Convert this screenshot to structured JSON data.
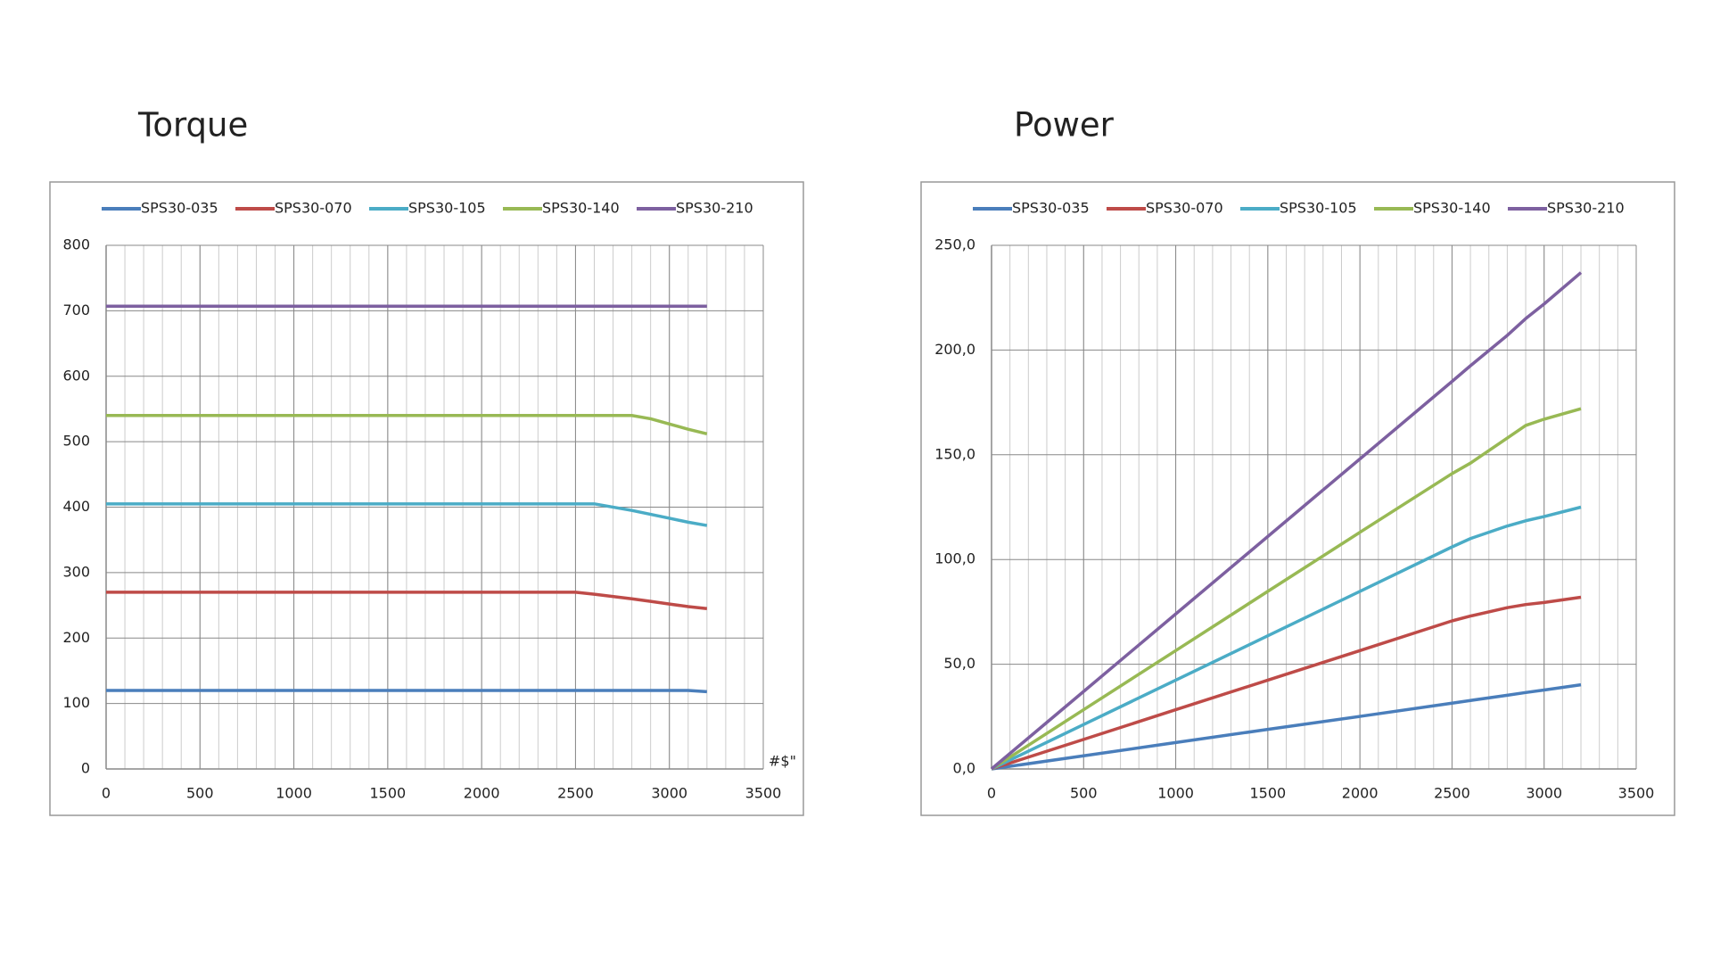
{
  "chart_data": [
    {
      "type": "line",
      "title": "Torque",
      "x_label": "#$\"",
      "x": [
        0,
        2500,
        2600,
        2800,
        2900,
        3000,
        3100,
        3200
      ],
      "series": [
        {
          "name": "SPS30-035",
          "color": "#4a7ebb",
          "values": [
            120,
            120,
            120,
            120,
            120,
            120,
            120,
            118
          ]
        },
        {
          "name": "SPS30-070",
          "color": "#be4b48",
          "values": [
            270,
            270,
            267,
            260,
            256,
            252,
            248,
            245
          ]
        },
        {
          "name": "SPS30-105",
          "color": "#4bacc6",
          "values": [
            405,
            405,
            405,
            395,
            389,
            383,
            377,
            372
          ]
        },
        {
          "name": "SPS30-140",
          "color": "#98b954",
          "values": [
            540,
            540,
            540,
            540,
            535,
            527,
            519,
            512
          ]
        },
        {
          "name": "SPS30-210",
          "color": "#7d60a0",
          "values": [
            707,
            707,
            707,
            707,
            707,
            707,
            707,
            707
          ]
        }
      ],
      "xlim": [
        0,
        3500
      ],
      "xticks": [
        0,
        500,
        1000,
        1500,
        2000,
        2500,
        3000,
        3500
      ],
      "ylim": [
        0,
        800
      ],
      "yticks": [
        0,
        100,
        200,
        300,
        400,
        500,
        600,
        700,
        800
      ],
      "grid": true,
      "minor_grid_step": 100,
      "legend": "top"
    },
    {
      "type": "line",
      "title": "Power",
      "x": [
        0,
        500,
        1000,
        1500,
        2000,
        2500,
        2600,
        2800,
        2900,
        3000,
        3200
      ],
      "series": [
        {
          "name": "SPS30-035",
          "color": "#4a7ebb",
          "values": [
            0,
            6.3,
            12.6,
            18.9,
            25.1,
            31.4,
            32.7,
            35.2,
            36.5,
            37.7,
            40.2
          ]
        },
        {
          "name": "SPS30-070",
          "color": "#be4b48",
          "values": [
            0,
            14.1,
            28.3,
            42.4,
            56.5,
            70.7,
            73,
            77,
            78.5,
            79.5,
            82
          ]
        },
        {
          "name": "SPS30-105",
          "color": "#4bacc6",
          "values": [
            0,
            21.2,
            42.4,
            63.6,
            84.8,
            106,
            110,
            116,
            118.5,
            120.5,
            125
          ]
        },
        {
          "name": "SPS30-140",
          "color": "#98b954",
          "values": [
            0,
            28.3,
            56.5,
            84.8,
            113,
            141,
            146,
            158,
            164,
            167,
            172
          ]
        },
        {
          "name": "SPS30-210",
          "color": "#7d60a0",
          "values": [
            0,
            37,
            74,
            111,
            148,
            185,
            192.5,
            207,
            215,
            222,
            237
          ]
        }
      ],
      "xlim": [
        0,
        3500
      ],
      "xticks": [
        0,
        500,
        1000,
        1500,
        2000,
        2500,
        3000,
        3500
      ],
      "ylim": [
        0,
        250
      ],
      "yticks": [
        {
          "value": 0,
          "label": "0,0"
        },
        {
          "value": 50,
          "label": "50,0"
        },
        {
          "value": 100,
          "label": "100,0"
        },
        {
          "value": 150,
          "label": "150,0"
        },
        {
          "value": 200,
          "label": "200,0"
        },
        {
          "value": 250,
          "label": "250,0"
        }
      ],
      "grid": true,
      "minor_grid_step": 100,
      "legend": "top"
    }
  ]
}
